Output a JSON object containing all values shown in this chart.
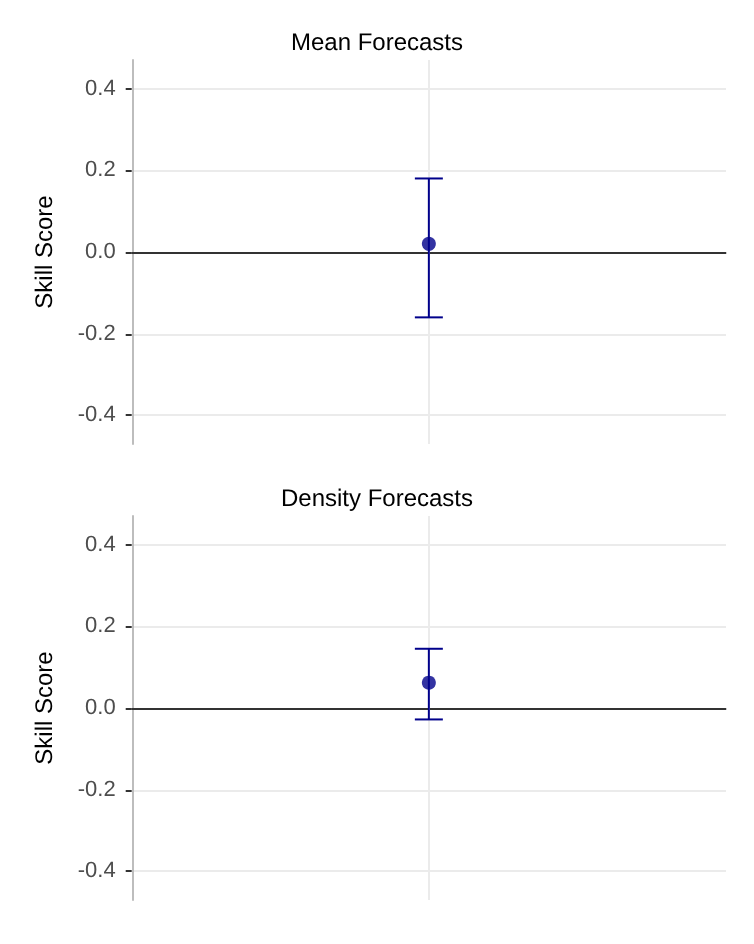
{
  "chart_data": [
    {
      "type": "scatter",
      "title": "Mean Forecasts",
      "ylabel": "Skill Score",
      "categories": [
        null
      ],
      "series": [
        {
          "color": "#00008b",
          "values": [
            0.02
          ],
          "errors": [
            [
              -0.16,
              0.18
            ]
          ]
        }
      ],
      "ylim": [
        -0.47,
        0.47
      ],
      "yticks": [
        {
          "value": -0.4,
          "label": "-0.4"
        },
        {
          "value": -0.2,
          "label": "-0.2"
        },
        {
          "value": 0,
          "label": "0.0"
        },
        {
          "value": 0.2,
          "label": "0.2"
        },
        {
          "value": 0.4,
          "label": "0.4"
        }
      ],
      "grid": true,
      "marker": "circle",
      "tick_labels": "y",
      "ref_lines": [
        {
          "axis": "y",
          "value": 0,
          "color": "#333333"
        }
      ]
    },
    {
      "type": "scatter",
      "title": "Density Forecasts",
      "ylabel": "Skill Score",
      "categories": [
        null
      ],
      "series": [
        {
          "color": "#00008b",
          "values": [
            0.062
          ],
          "errors": [
            [
              -0.028,
              0.145
            ]
          ]
        }
      ],
      "ylim": [
        -0.47,
        0.47
      ],
      "yticks": [
        {
          "value": -0.4,
          "label": "-0.4"
        },
        {
          "value": -0.2,
          "label": "-0.2"
        },
        {
          "value": 0,
          "label": "0.0"
        },
        {
          "value": 0.2,
          "label": "0.2"
        },
        {
          "value": 0.4,
          "label": "0.4"
        }
      ],
      "grid": true,
      "marker": "circle",
      "tick_labels": "y",
      "ref_lines": [
        {
          "axis": "y",
          "value": 0,
          "color": "#333333"
        }
      ]
    }
  ]
}
